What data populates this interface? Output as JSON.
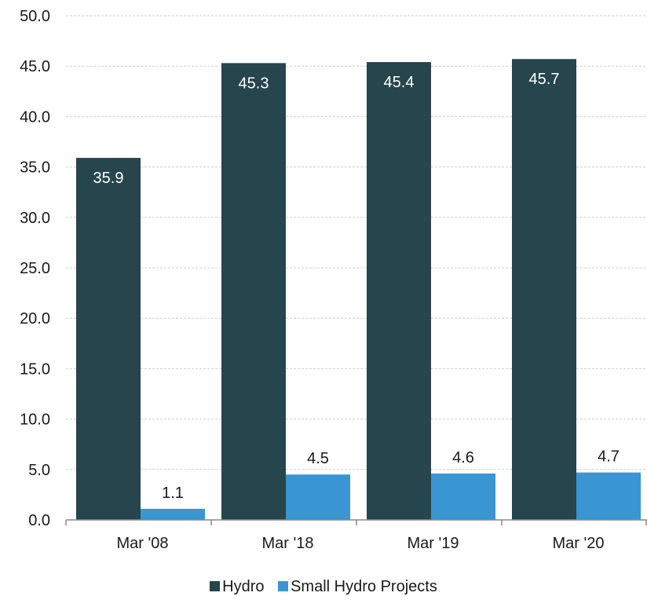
{
  "chart_data": {
    "type": "bar",
    "categories": [
      "Mar '08",
      "Mar '18",
      "Mar '19",
      "Mar '20"
    ],
    "series": [
      {
        "name": "Hydro",
        "color": "#26454d",
        "values": [
          35.9,
          45.3,
          45.4,
          45.7
        ],
        "labels": [
          "35.9",
          "45.3",
          "45.4",
          "45.7"
        ]
      },
      {
        "name": "Small Hydro Projects",
        "color": "#3a95d3",
        "values": [
          1.1,
          4.5,
          4.6,
          4.7
        ],
        "labels": [
          "1.1",
          "4.5",
          "4.6",
          "4.7"
        ]
      }
    ],
    "ylim": [
      0,
      50
    ],
    "yticks": [
      "0.0",
      "5.0",
      "10.0",
      "15.0",
      "20.0",
      "25.0",
      "30.0",
      "35.0",
      "40.0",
      "45.0",
      "50.0"
    ],
    "grid": true,
    "legend_position": "bottom"
  }
}
